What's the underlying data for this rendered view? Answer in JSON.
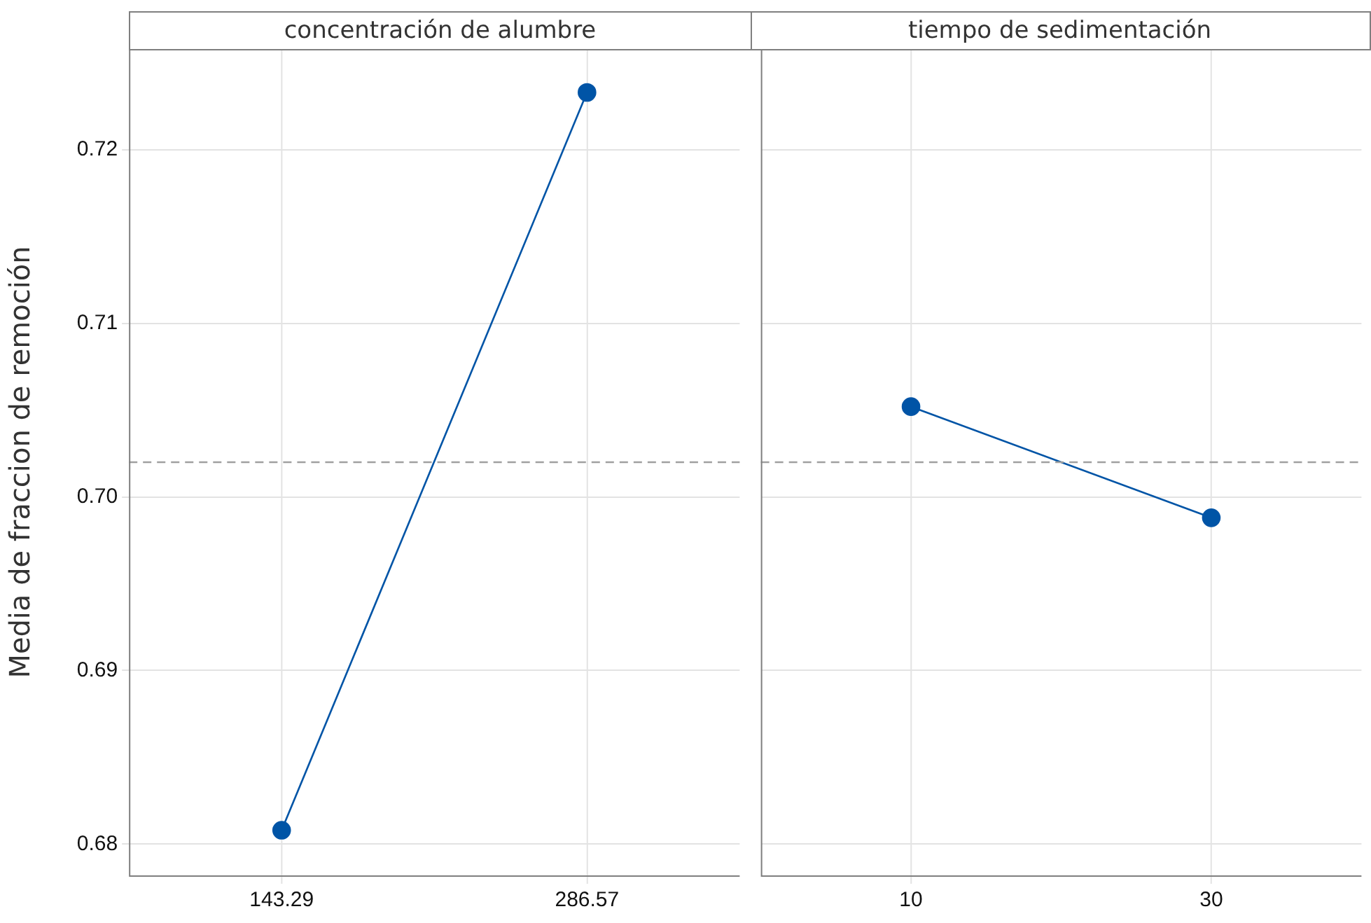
{
  "chart_data": [
    {
      "type": "line",
      "title": "concentración de alumbre",
      "ylabel": "Media de fraccion de remoción",
      "categories": [
        "143.29",
        "286.57"
      ],
      "series": [
        {
          "color": "#0054a6",
          "values": [
            0.6808,
            0.7233
          ]
        }
      ],
      "ylim": [
        0.6782,
        0.7258
      ],
      "yticks": [
        0.68,
        0.69,
        {
          "value": 0.7,
          "label": "0.70"
        },
        0.71,
        0.72
      ],
      "ref_lines": [
        {
          "axis": "y",
          "value": 0.702,
          "color": "#a0a0a0",
          "line_style": "dashed"
        }
      ],
      "grid": true,
      "marker": "circle",
      "line_style": "solid"
    },
    {
      "type": "line",
      "title": "tiempo de sedimentación",
      "categories": [
        "10",
        "30"
      ],
      "series": [
        {
          "color": "#0054a6",
          "values": [
            0.7052,
            0.6988
          ]
        }
      ],
      "ylim": [
        0.6782,
        0.7258
      ],
      "yticks": [
        0.68,
        0.69,
        0.7,
        0.71,
        0.72
      ],
      "ref_lines": [
        {
          "axis": "y",
          "value": 0.702,
          "color": "#a0a0a0",
          "line_style": "dashed"
        }
      ],
      "grid": true,
      "marker": "circle",
      "line_style": "solid",
      "tick_labels": "x"
    }
  ]
}
